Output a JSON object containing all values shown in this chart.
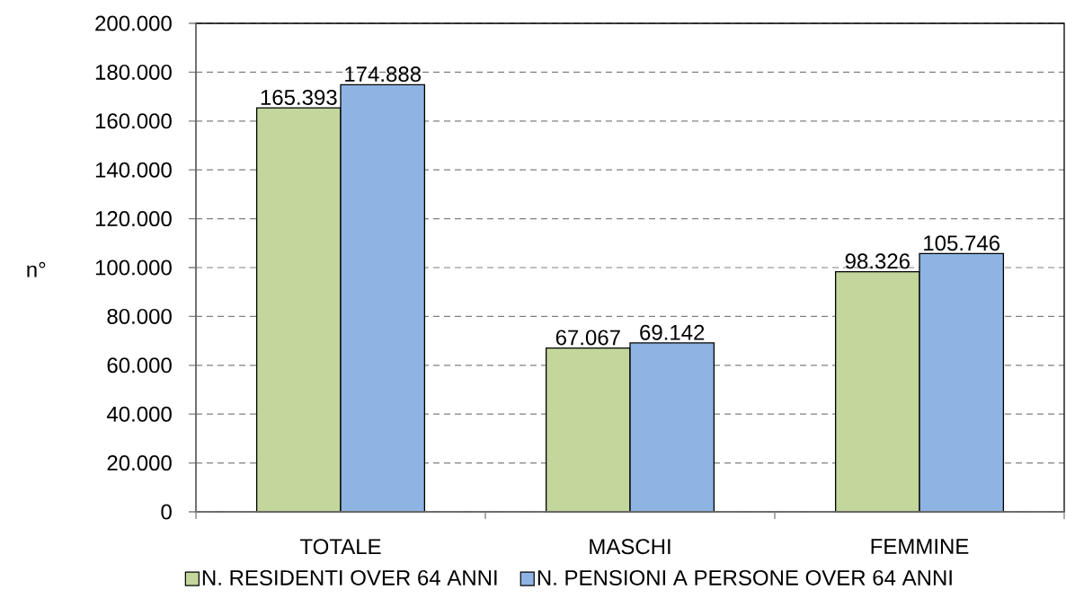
{
  "chart_data": {
    "type": "bar",
    "ylabel": "n°",
    "categories": [
      "TOTALE",
      "MASCHI",
      "FEMMINE"
    ],
    "series": [
      {
        "name": "N. RESIDENTI OVER 64 ANNI",
        "color": "#c3d69b",
        "values": [
          165393,
          67067,
          98326
        ],
        "value_labels": [
          "165.393",
          "67.067",
          "98.326"
        ]
      },
      {
        "name": "N. PENSIONI A PERSONE OVER 64 ANNI",
        "color": "#8eb4e3",
        "values": [
          174888,
          69142,
          105746
        ],
        "value_labels": [
          "174.888",
          "69.142",
          "105.746"
        ]
      }
    ],
    "ylim": [
      0,
      200000
    ],
    "yticks": [
      0,
      {
        "value": 20000,
        "label": "20.000"
      },
      {
        "value": 40000,
        "label": "40.000"
      },
      {
        "value": 60000,
        "label": "60.000"
      },
      {
        "value": 80000,
        "label": "80.000"
      },
      {
        "value": 100000,
        "label": "100.000"
      },
      {
        "value": 120000,
        "label": "120.000"
      },
      {
        "value": 140000,
        "label": "140.000"
      },
      {
        "value": 160000,
        "label": "160.000"
      },
      {
        "value": 180000,
        "label": "180.000"
      },
      {
        "value": 200000,
        "label": "200.000"
      }
    ],
    "grid": "y",
    "legend": "bottom"
  }
}
